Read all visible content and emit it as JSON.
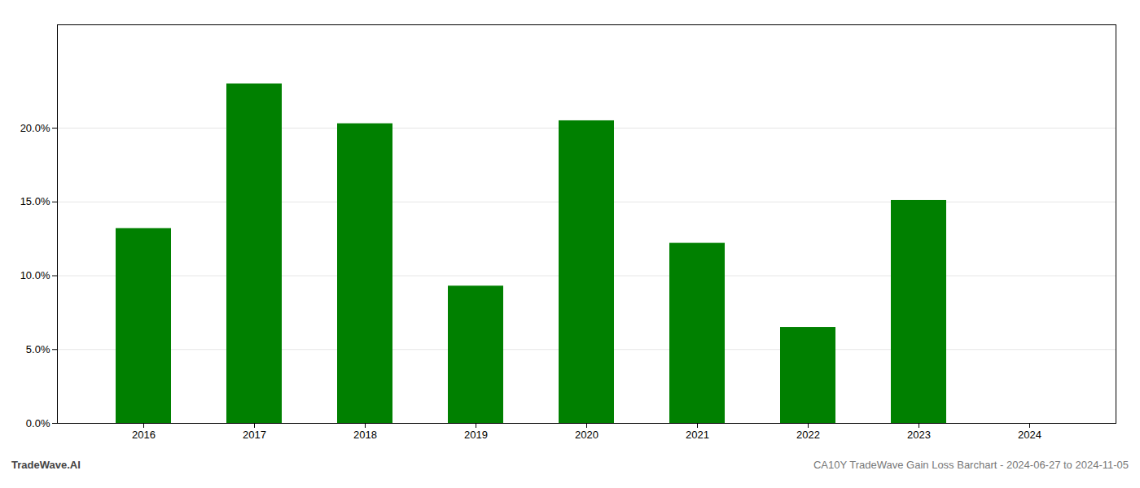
{
  "chart_data": {
    "type": "bar",
    "categories": [
      "2016",
      "2017",
      "2018",
      "2019",
      "2020",
      "2021",
      "2022",
      "2023",
      "2024"
    ],
    "values": [
      0.132,
      0.23,
      0.203,
      0.093,
      0.205,
      0.122,
      0.065,
      0.151,
      0.0
    ],
    "color": "#008000",
    "ylim": [
      0,
      0.27
    ],
    "yticks": [
      {
        "value": 0.0,
        "label": "0.0%"
      },
      {
        "value": 0.05,
        "label": "5.0%"
      },
      {
        "value": 0.1,
        "label": "10.0%"
      },
      {
        "value": 0.15,
        "label": "15.0%"
      },
      {
        "value": 0.2,
        "label": "20.0%"
      }
    ],
    "grid": true,
    "annotations": [
      "TradeWave.AI",
      "CA10Y TradeWave Gain Loss Barchart - 2024-06-27 to 2024-11-05"
    ]
  }
}
